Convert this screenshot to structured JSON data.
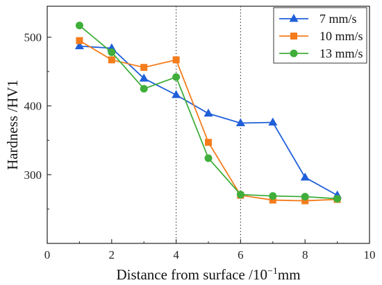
{
  "chart_data": {
    "type": "line",
    "title": "",
    "xlabel": "Distance from surface /10",
    "xlabel_exponent": "−1",
    "xlabel_unit": "mm",
    "ylabel": "Hardness /HV1",
    "xlim": [
      0,
      10
    ],
    "ylim": [
      200,
      545
    ],
    "x_ticks": [
      "0",
      "2",
      "4",
      "6",
      "8",
      "10"
    ],
    "y_ticks": [
      "300",
      "400",
      "500"
    ],
    "grid": false,
    "legend_position": "top-right",
    "reference_lines_x": [
      4,
      6
    ],
    "x": [
      1,
      2,
      3,
      4,
      5,
      6,
      7,
      8,
      9
    ],
    "series": [
      {
        "name": "7 mm/s",
        "marker": "triangle",
        "color": "#1f5fd8",
        "values": [
          487,
          484,
          440,
          416,
          389,
          375,
          376,
          296,
          270
        ]
      },
      {
        "name": "10 mm/s",
        "marker": "square",
        "color": "#f47c1c",
        "values": [
          495,
          467,
          456,
          467,
          347,
          270,
          263,
          262,
          264
        ]
      },
      {
        "name": "13 mm/s",
        "marker": "circle",
        "color": "#3fae3a",
        "values": [
          517,
          478,
          425,
          442,
          324,
          271,
          269,
          268,
          265
        ]
      }
    ]
  }
}
